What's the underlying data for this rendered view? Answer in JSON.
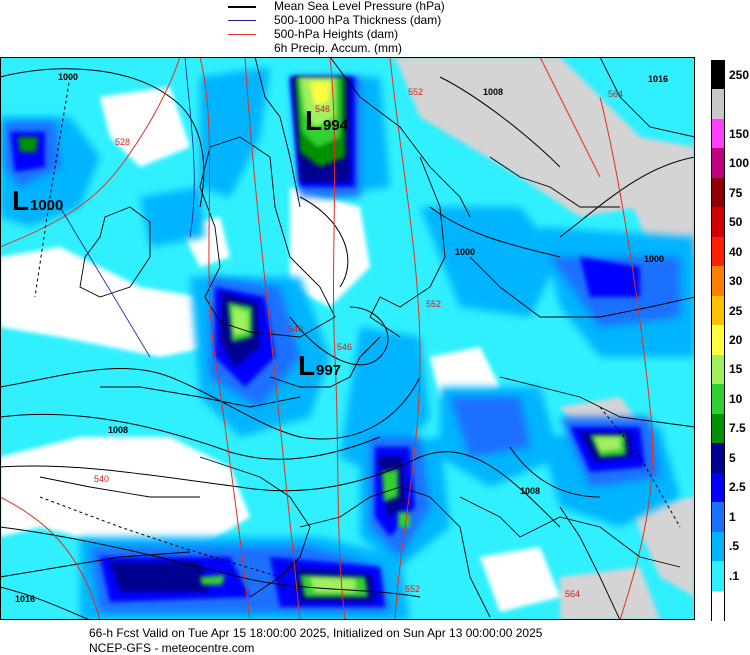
{
  "legend": [
    {
      "label": "Mean Sea Level Pressure (hPa)",
      "color": "#000000"
    },
    {
      "label": "500-1000 hPa Thickness (dam)",
      "color": "#1a1aa8"
    },
    {
      "label": "500-hPa Heights (dam)",
      "color": "#e03020"
    },
    {
      "label": "6h Precip. Accum. (mm)",
      "color": ""
    }
  ],
  "colorbar": {
    "levels": [
      {
        "label": "250",
        "color": "#000000"
      },
      {
        "label": "",
        "color": "#c8c8c8"
      },
      {
        "label": "150",
        "color": "#ff40ff"
      },
      {
        "label": "100",
        "color": "#c00080"
      },
      {
        "label": "75",
        "color": "#8b0000"
      },
      {
        "label": "50",
        "color": "#d00000"
      },
      {
        "label": "40",
        "color": "#ff2000"
      },
      {
        "label": "30",
        "color": "#ff8000"
      },
      {
        "label": "25",
        "color": "#ffc000"
      },
      {
        "label": "20",
        "color": "#ffff40"
      },
      {
        "label": "15",
        "color": "#a0f060"
      },
      {
        "label": "10",
        "color": "#30d030"
      },
      {
        "label": "7.5",
        "color": "#009000"
      },
      {
        "label": "5",
        "color": "#000090"
      },
      {
        "label": "2.5",
        "color": "#0000ff"
      },
      {
        "label": "1",
        "color": "#1a70ff"
      },
      {
        "label": ".5",
        "color": "#00b4ff"
      },
      {
        "label": ".1",
        "color": "#30f0ff"
      },
      {
        "label": "",
        "color": "#ffffff"
      }
    ]
  },
  "lows": [
    {
      "L": "L",
      "value": "1000"
    },
    {
      "L": "L",
      "value": "994"
    },
    {
      "L": "L",
      "value": "997"
    }
  ],
  "isobar_labels": [
    "1000",
    "1000",
    "1008",
    "1000",
    "1008",
    "1008",
    "1016",
    "1016"
  ],
  "height_labels": [
    "528",
    "546",
    "552",
    "564",
    "540",
    "546",
    "552",
    "552",
    "564",
    "540"
  ],
  "footer": {
    "line1": "66-h Fcst Valid on Tue Apr 15 18:00:00 2025, Initialized on Sun Apr 13 00:00:00 2025",
    "line2": "NCEP-GFS  - meteocentre.com"
  }
}
